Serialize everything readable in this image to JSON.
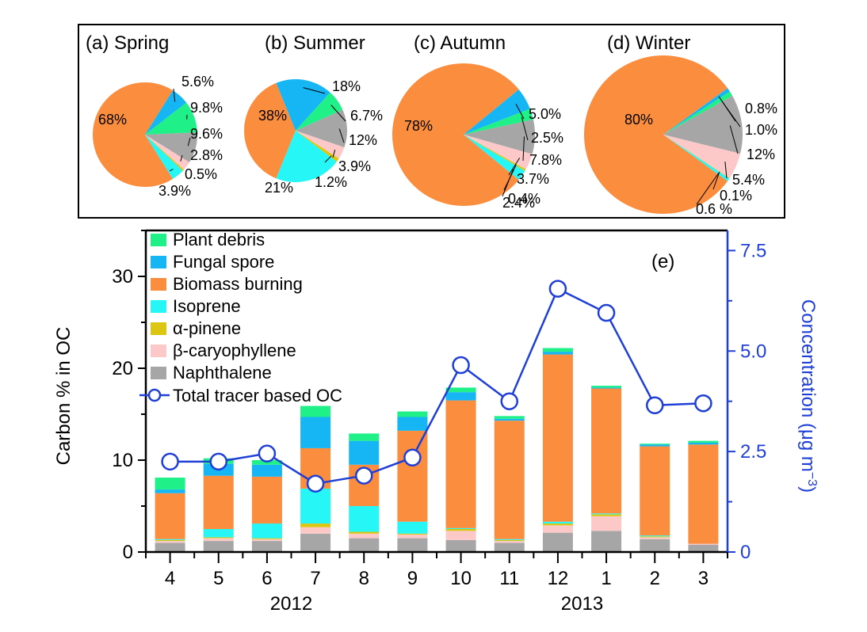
{
  "chart_data": [
    {
      "type": "pie",
      "title": "(a) Spring",
      "slices": [
        {
          "label": "68%",
          "value": 68,
          "color": "#fb8d3e"
        },
        {
          "label": "5.6%",
          "value": 5.6,
          "color": "#16b5f3"
        },
        {
          "label": "9.8%",
          "value": 9.8,
          "color": "#1ff088"
        },
        {
          "label": "9.6%",
          "value": 9.6,
          "color": "#a6a6a6"
        },
        {
          "label": "2.8%",
          "value": 2.8,
          "color": "#fdc8c8"
        },
        {
          "label": "0.5%",
          "value": 0.5,
          "color": "#dcc612"
        },
        {
          "label": "3.9%",
          "value": 3.9,
          "color": "#27f6f6"
        }
      ]
    },
    {
      "type": "pie",
      "title": "(b) Summer",
      "slices": [
        {
          "label": "38%",
          "value": 38,
          "color": "#fb8d3e"
        },
        {
          "label": "18%",
          "value": 18,
          "color": "#16b5f3"
        },
        {
          "label": "6.7%",
          "value": 6.7,
          "color": "#1ff088"
        },
        {
          "label": "12%",
          "value": 12,
          "color": "#a6a6a6"
        },
        {
          "label": "3.9%",
          "value": 3.9,
          "color": "#fdc8c8"
        },
        {
          "label": "1.2%",
          "value": 1.2,
          "color": "#dcc612"
        },
        {
          "label": "21%",
          "value": 21,
          "color": "#27f6f6"
        }
      ]
    },
    {
      "type": "pie",
      "title": "(c) Autumn",
      "slices": [
        {
          "label": "78%",
          "value": 78,
          "color": "#fb8d3e"
        },
        {
          "label": "5.0%",
          "value": 5.0,
          "color": "#16b5f3"
        },
        {
          "label": "2.5%",
          "value": 2.5,
          "color": "#1ff088"
        },
        {
          "label": "7.8%",
          "value": 7.8,
          "color": "#a6a6a6"
        },
        {
          "label": "3.7%",
          "value": 3.7,
          "color": "#fdc8c8"
        },
        {
          "label": "0.4%",
          "value": 0.4,
          "color": "#dcc612"
        },
        {
          "label": "2.4%",
          "value": 2.4,
          "color": "#27f6f6"
        }
      ]
    },
    {
      "type": "pie",
      "title": "(d) Winter",
      "slices": [
        {
          "label": "80%",
          "value": 80,
          "color": "#fb8d3e"
        },
        {
          "label": "0.8%",
          "value": 0.8,
          "color": "#16b5f3"
        },
        {
          "label": "1.0%",
          "value": 1.0,
          "color": "#1ff088"
        },
        {
          "label": "12%",
          "value": 12,
          "color": "#a6a6a6"
        },
        {
          "label": "5.4%",
          "value": 5.4,
          "color": "#fdc8c8"
        },
        {
          "label": "0.1%",
          "value": 0.1,
          "color": "#dcc612"
        },
        {
          "label": "0.6 %",
          "value": 0.6,
          "color": "#27f6f6"
        }
      ]
    },
    {
      "type": "bar",
      "stacked": true,
      "panel_label": "(e)",
      "categories": [
        "4",
        "5",
        "6",
        "7",
        "8",
        "9",
        "10",
        "11",
        "12",
        "1",
        "2",
        "3"
      ],
      "year_labels": [
        {
          "text": "2012",
          "center_month_index": 2.5
        },
        {
          "text": "2013",
          "center_month_index": 8.5
        }
      ],
      "ylabel": "Carbon % in OC",
      "ylim": [
        0,
        35
      ],
      "yticks": [
        0,
        10,
        20,
        30
      ],
      "y2label_main": "Concentration (μg m",
      "y2label_sup": "−3",
      "y2label_end": ")",
      "y2lim": [
        0,
        8
      ],
      "y2ticks": [
        "0",
        "2.5",
        "5.0",
        "7.5"
      ],
      "series": [
        {
          "name": "Naphthalene",
          "color": "#a6a6a6",
          "values": [
            1.0,
            1.2,
            1.2,
            2.0,
            1.5,
            1.5,
            1.3,
            1.0,
            2.1,
            2.3,
            1.4,
            0.8
          ]
        },
        {
          "name": "β-caryophyllene",
          "color": "#fdc8c8",
          "values": [
            0.2,
            0.3,
            0.2,
            0.7,
            0.5,
            0.4,
            1.0,
            0.2,
            0.8,
            1.6,
            0.2,
            0.1
          ]
        },
        {
          "name": "α-pinene",
          "color": "#dcc612",
          "values": [
            0.1,
            0.1,
            0.1,
            0.4,
            0.2,
            0.1,
            0.2,
            0.1,
            0.2,
            0.2,
            0.1,
            0.0
          ]
        },
        {
          "name": "Isoprene",
          "color": "#27f6f6",
          "values": [
            0.1,
            0.9,
            1.6,
            3.8,
            2.8,
            1.3,
            0.1,
            0.1,
            0.2,
            0.1,
            0.1,
            0.0
          ]
        },
        {
          "name": "Biomass burning",
          "color": "#fb8d3e",
          "values": [
            5.0,
            5.8,
            5.1,
            4.4,
            4.5,
            9.9,
            13.9,
            12.9,
            18.2,
            13.6,
            9.7,
            10.8
          ]
        },
        {
          "name": "Fungal spore",
          "color": "#16b5f3",
          "values": [
            0.4,
            1.3,
            1.3,
            3.4,
            2.6,
            1.5,
            0.9,
            0.2,
            0.3,
            0.1,
            0.2,
            0.2
          ]
        },
        {
          "name": "Plant debris",
          "color": "#1ff088",
          "values": [
            1.3,
            0.6,
            0.5,
            1.2,
            0.8,
            0.6,
            0.5,
            0.3,
            0.4,
            0.2,
            0.1,
            0.2
          ]
        }
      ],
      "line": {
        "name": "Total tracer based OC",
        "color": "#1f3fd6",
        "values": [
          2.25,
          2.25,
          2.45,
          1.7,
          1.9,
          2.35,
          4.65,
          3.75,
          6.55,
          5.95,
          3.65,
          3.7
        ]
      },
      "legend_order": [
        "Plant debris",
        "Fungal spore",
        "Biomass burning",
        "Isoprene",
        "α-pinene",
        "β-caryophyllene",
        "Naphthalene"
      ]
    }
  ]
}
